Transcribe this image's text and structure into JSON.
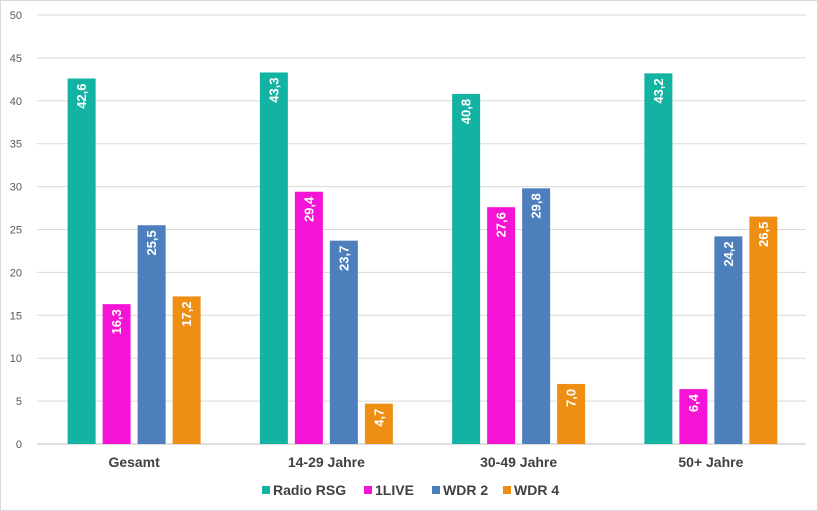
{
  "chart_data": {
    "type": "bar",
    "title": "",
    "xlabel": "",
    "ylabel": "",
    "ylim": [
      0,
      50
    ],
    "yticks": [
      0,
      5,
      10,
      15,
      20,
      25,
      30,
      35,
      40,
      45,
      50
    ],
    "grid": true,
    "legend_position": "bottom",
    "categories": [
      "Gesamt",
      "14-29 Jahre",
      "30-49 Jahre",
      "50+ Jahre"
    ],
    "series": [
      {
        "name": "Radio RSG",
        "color": "#12b3a2",
        "values": [
          42.6,
          43.3,
          40.8,
          43.2
        ],
        "labels": [
          "42,6",
          "43,3",
          "40,8",
          "43,2"
        ]
      },
      {
        "name": "1LIVE",
        "color": "#f513d6",
        "values": [
          16.3,
          29.4,
          27.6,
          6.4
        ],
        "labels": [
          "16,3",
          "29,4",
          "27,6",
          "6,4"
        ]
      },
      {
        "name": "WDR 2",
        "color": "#4e7fbd",
        "values": [
          25.5,
          23.7,
          29.8,
          24.2
        ],
        "labels": [
          "25,5",
          "23,7",
          "29,8",
          "24,2"
        ]
      },
      {
        "name": "WDR 4",
        "color": "#ee8e13",
        "values": [
          17.2,
          4.7,
          7.0,
          26.5
        ],
        "labels": [
          "17,2",
          "4,7",
          "7,0",
          "26,5"
        ]
      }
    ]
  }
}
